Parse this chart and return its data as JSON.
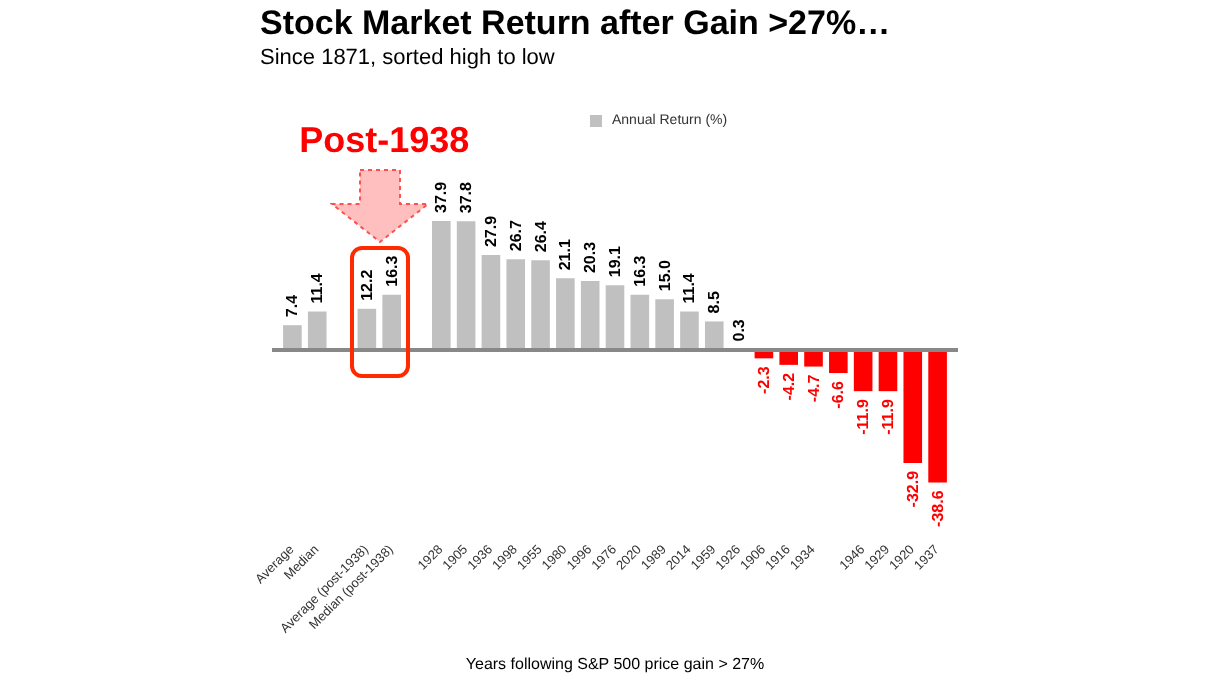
{
  "chart_data": {
    "type": "bar",
    "title": "Stock Market Return after Gain >27%…",
    "subtitle": "Since 1871, sorted high to low",
    "xlabel": "Years following S&P 500 price gain > 27%",
    "annotations": [
      "Post-1938"
    ],
    "categories": [
      "Average",
      "Median",
      null,
      "Average (post-1938)",
      "Median (post-1938)",
      null,
      "1928",
      "1905",
      "1936",
      "1998",
      "1955",
      "1980",
      "1996",
      "1976",
      "2020",
      "1989",
      "2014",
      "1959",
      "1926",
      "1906",
      "1916",
      "1934",
      null,
      "1946",
      "1929",
      "1920",
      "1937"
    ],
    "series": [
      {
        "name": "Annual Return (%)",
        "color": "#c0c0c0",
        "values": [
          7.4,
          11.4,
          null,
          12.2,
          16.3,
          null,
          37.9,
          37.8,
          27.9,
          26.7,
          26.4,
          21.1,
          20.3,
          19.1,
          16.3,
          15.0,
          11.4,
          8.5,
          0.3,
          -2.3,
          -4.2,
          -4.7,
          -6.6,
          -11.9,
          -11.9,
          -32.9,
          -38.6
        ],
        "colors": [
          "#c0c0c0",
          "#c0c0c0",
          null,
          "#c0c0c0",
          "#c0c0c0",
          null,
          "#c0c0c0",
          "#c0c0c0",
          "#c0c0c0",
          "#c0c0c0",
          "#c0c0c0",
          "#c0c0c0",
          "#c0c0c0",
          "#c0c0c0",
          "#c0c0c0",
          "#c0c0c0",
          "#c0c0c0",
          "#c0c0c0",
          "#c0c0c0",
          "#ff0000",
          "#ff0000",
          "#ff0000",
          "#ff0000",
          "#ff0000",
          "#ff0000",
          "#ff0000",
          "#ff0000"
        ],
        "value_labels": [
          "7.4",
          "11.4",
          null,
          "12.2",
          "16.3",
          null,
          "37.9",
          "37.8",
          "27.9",
          "26.7",
          "26.4",
          "21.1",
          "20.3",
          "19.1",
          "16.3",
          "15.0",
          "11.4",
          "8.5",
          "0.3",
          "-2.3",
          "-4.2",
          "-4.7",
          "-6.6",
          "-11.9",
          "-11.9",
          "-32.9",
          "-38.6"
        ]
      }
    ],
    "legend": "top"
  }
}
